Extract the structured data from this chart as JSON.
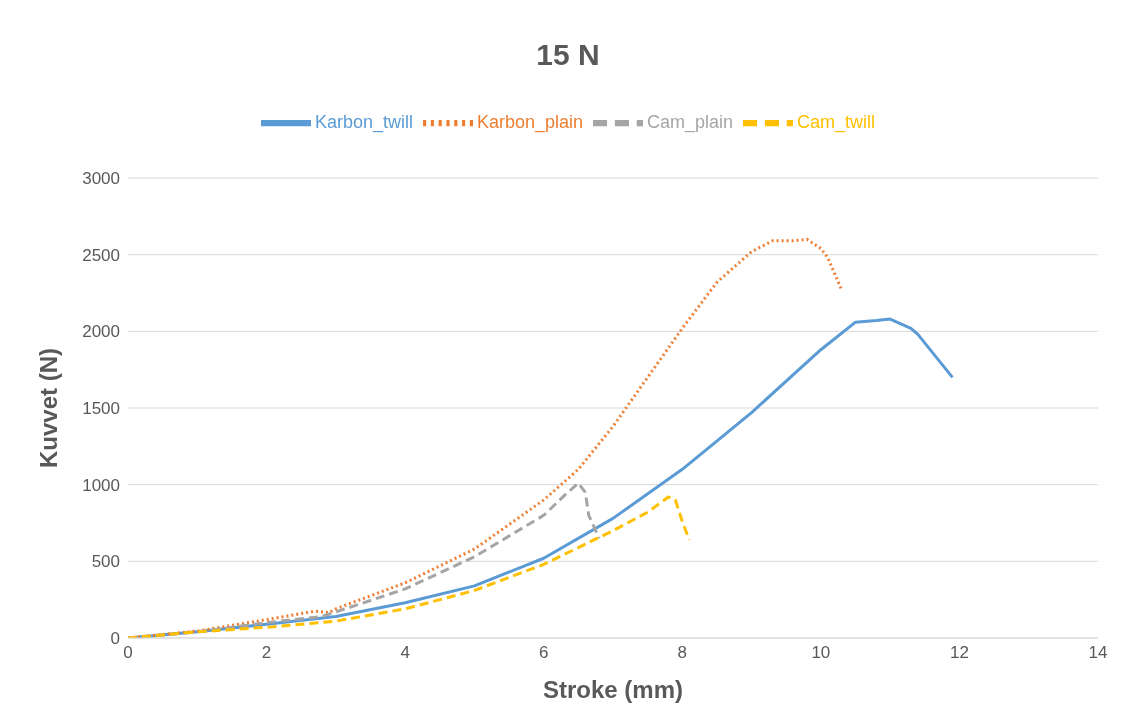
{
  "chart_data": {
    "type": "line",
    "title": "15 N",
    "xlabel": "Stroke (mm)",
    "ylabel": "Kuvvet (N)",
    "xlim": [
      0,
      14
    ],
    "xticks": [
      0,
      2,
      4,
      6,
      8,
      10,
      12,
      14
    ],
    "ylim": [
      0,
      3000
    ],
    "yticks": [
      0,
      500,
      1000,
      1500,
      2000,
      2500,
      3000
    ],
    "grid": "y",
    "legend": "top",
    "marker": "none",
    "series": [
      {
        "name": "Karbon_twill",
        "color": "#5b9bd5",
        "line_style": "solid",
        "x": [
          0,
          1,
          2,
          3,
          4,
          5,
          6,
          7,
          8,
          9,
          10,
          10.5,
          10.8,
          11,
          11.3,
          11.4,
          11.9
        ],
        "values": [
          0,
          40,
          90,
          140,
          230,
          340,
          520,
          780,
          1100,
          1470,
          1880,
          2060,
          2070,
          2080,
          2020,
          1980,
          1700
        ]
      },
      {
        "name": "Karbon_plain",
        "color": "#ed7d31",
        "line_style": "dotted",
        "x": [
          0,
          1,
          2,
          2.7,
          2.9,
          3,
          4,
          5,
          6,
          6.5,
          7,
          7.5,
          8,
          8.5,
          9,
          9.3,
          9.6,
          9.8,
          10,
          10.1,
          10.3
        ],
        "values": [
          0,
          45,
          120,
          175,
          165,
          190,
          360,
          580,
          900,
          1100,
          1380,
          1700,
          2020,
          2320,
          2520,
          2590,
          2590,
          2600,
          2540,
          2480,
          2270
        ]
      },
      {
        "name": "Cam_plain",
        "color": "#a5a5a5",
        "line_style": "dashed",
        "x": [
          0,
          1,
          2,
          2.8,
          3,
          4,
          5,
          6,
          6.3,
          6.5,
          6.6,
          6.65,
          6.8
        ],
        "values": [
          0,
          40,
          100,
          140,
          170,
          320,
          530,
          800,
          930,
          1010,
          950,
          800,
          650
        ]
      },
      {
        "name": "Cam_twill",
        "color": "#ffc000",
        "line_style": "dashed",
        "x": [
          0,
          1,
          2,
          3,
          4,
          5,
          6,
          7,
          7.5,
          7.8,
          7.9,
          8,
          8.1
        ],
        "values": [
          0,
          40,
          70,
          110,
          190,
          310,
          480,
          700,
          820,
          920,
          900,
          760,
          640
        ]
      }
    ]
  }
}
